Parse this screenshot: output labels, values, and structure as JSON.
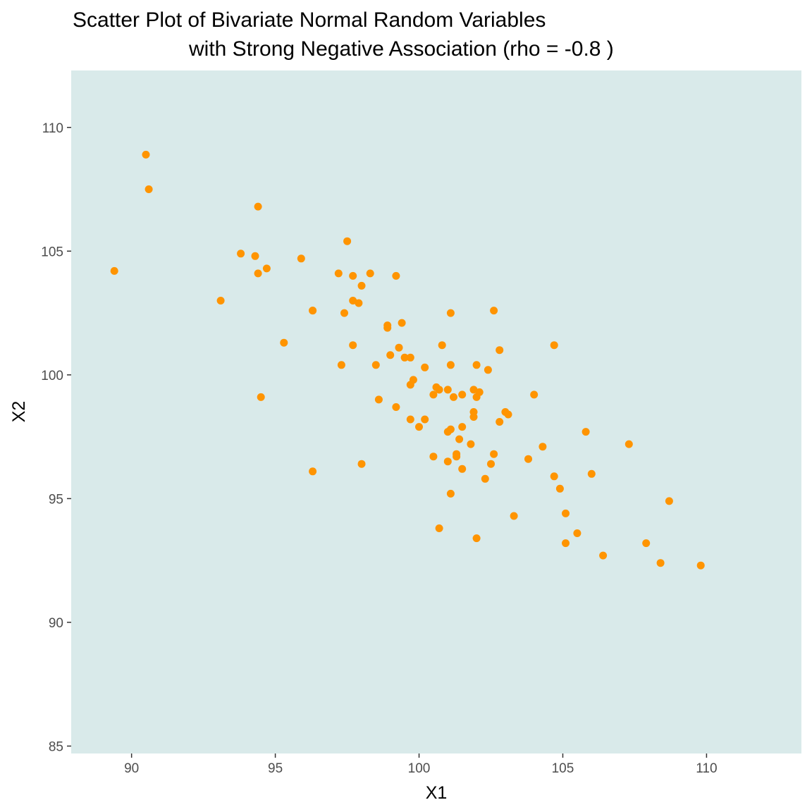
{
  "chart_data": {
    "type": "scatter",
    "title_line1": "Scatter Plot of Bivariate Normal Random Variables",
    "title_line2": "with Strong Negative Association (rho =  -0.8 )",
    "xlabel": "X1",
    "ylabel": "X2",
    "xlim": [
      87.9,
      113.3
    ],
    "ylim": [
      84.7,
      112.3
    ],
    "xticks": [
      90,
      95,
      100,
      105,
      110
    ],
    "yticks": [
      85,
      90,
      95,
      100,
      105,
      110
    ],
    "panel_color": "#d9eaea",
    "point_color": "#ff9400",
    "grid": false,
    "points": [
      [
        90.5,
        108.9
      ],
      [
        90.6,
        107.5
      ],
      [
        89.4,
        104.2
      ],
      [
        94.4,
        106.8
      ],
      [
        93.8,
        104.9
      ],
      [
        94.3,
        104.8
      ],
      [
        94.7,
        104.3
      ],
      [
        94.4,
        104.1
      ],
      [
        93.1,
        103.0
      ],
      [
        95.9,
        104.7
      ],
      [
        97.5,
        105.4
      ],
      [
        97.2,
        104.1
      ],
      [
        97.7,
        104.0
      ],
      [
        98.3,
        104.1
      ],
      [
        98.0,
        103.6
      ],
      [
        99.2,
        104.0
      ],
      [
        97.7,
        103.0
      ],
      [
        97.9,
        102.9
      ],
      [
        96.3,
        102.6
      ],
      [
        96.3,
        102.6
      ],
      [
        97.4,
        102.5
      ],
      [
        95.3,
        101.3
      ],
      [
        98.9,
        102.0
      ],
      [
        98.9,
        101.9
      ],
      [
        99.4,
        102.1
      ],
      [
        101.1,
        102.5
      ],
      [
        102.6,
        102.6
      ],
      [
        97.7,
        101.2
      ],
      [
        99.3,
        101.1
      ],
      [
        99.0,
        100.8
      ],
      [
        99.5,
        100.7
      ],
      [
        99.7,
        100.7
      ],
      [
        98.5,
        100.4
      ],
      [
        97.3,
        100.4
      ],
      [
        100.2,
        100.3
      ],
      [
        100.8,
        101.2
      ],
      [
        101.1,
        100.4
      ],
      [
        102.0,
        100.4
      ],
      [
        102.4,
        100.2
      ],
      [
        102.8,
        101.0
      ],
      [
        104.7,
        101.2
      ],
      [
        99.8,
        99.8
      ],
      [
        99.7,
        99.6
      ],
      [
        100.6,
        99.5
      ],
      [
        100.7,
        99.4
      ],
      [
        100.5,
        99.2
      ],
      [
        101.0,
        99.4
      ],
      [
        101.2,
        99.1
      ],
      [
        101.5,
        99.2
      ],
      [
        101.9,
        99.4
      ],
      [
        102.1,
        99.3
      ],
      [
        102.0,
        99.1
      ],
      [
        104.0,
        99.2
      ],
      [
        94.5,
        99.1
      ],
      [
        98.6,
        99.0
      ],
      [
        99.2,
        98.7
      ],
      [
        101.9,
        98.5
      ],
      [
        101.9,
        98.3
      ],
      [
        103.0,
        98.5
      ],
      [
        103.1,
        98.4
      ],
      [
        102.8,
        98.1
      ],
      [
        99.7,
        98.2
      ],
      [
        100.2,
        98.2
      ],
      [
        100.0,
        97.9
      ],
      [
        101.1,
        97.8
      ],
      [
        101.0,
        97.7
      ],
      [
        101.5,
        97.9
      ],
      [
        105.8,
        97.7
      ],
      [
        101.4,
        97.4
      ],
      [
        101.8,
        97.2
      ],
      [
        104.3,
        97.1
      ],
      [
        107.3,
        97.2
      ],
      [
        102.6,
        96.8
      ],
      [
        101.3,
        96.8
      ],
      [
        101.3,
        96.7
      ],
      [
        100.5,
        96.7
      ],
      [
        101.0,
        96.5
      ],
      [
        103.8,
        96.6
      ],
      [
        98.0,
        96.4
      ],
      [
        102.5,
        96.4
      ],
      [
        101.5,
        96.2
      ],
      [
        96.3,
        96.1
      ],
      [
        106.0,
        96.0
      ],
      [
        104.7,
        95.9
      ],
      [
        102.3,
        95.8
      ],
      [
        104.9,
        95.4
      ],
      [
        101.1,
        95.2
      ],
      [
        108.7,
        94.9
      ],
      [
        105.1,
        94.4
      ],
      [
        103.3,
        94.3
      ],
      [
        100.7,
        93.8
      ],
      [
        105.5,
        93.6
      ],
      [
        102.0,
        93.4
      ],
      [
        105.1,
        93.2
      ],
      [
        107.9,
        93.2
      ],
      [
        106.4,
        92.7
      ],
      [
        108.4,
        92.4
      ],
      [
        109.8,
        92.3
      ]
    ]
  }
}
